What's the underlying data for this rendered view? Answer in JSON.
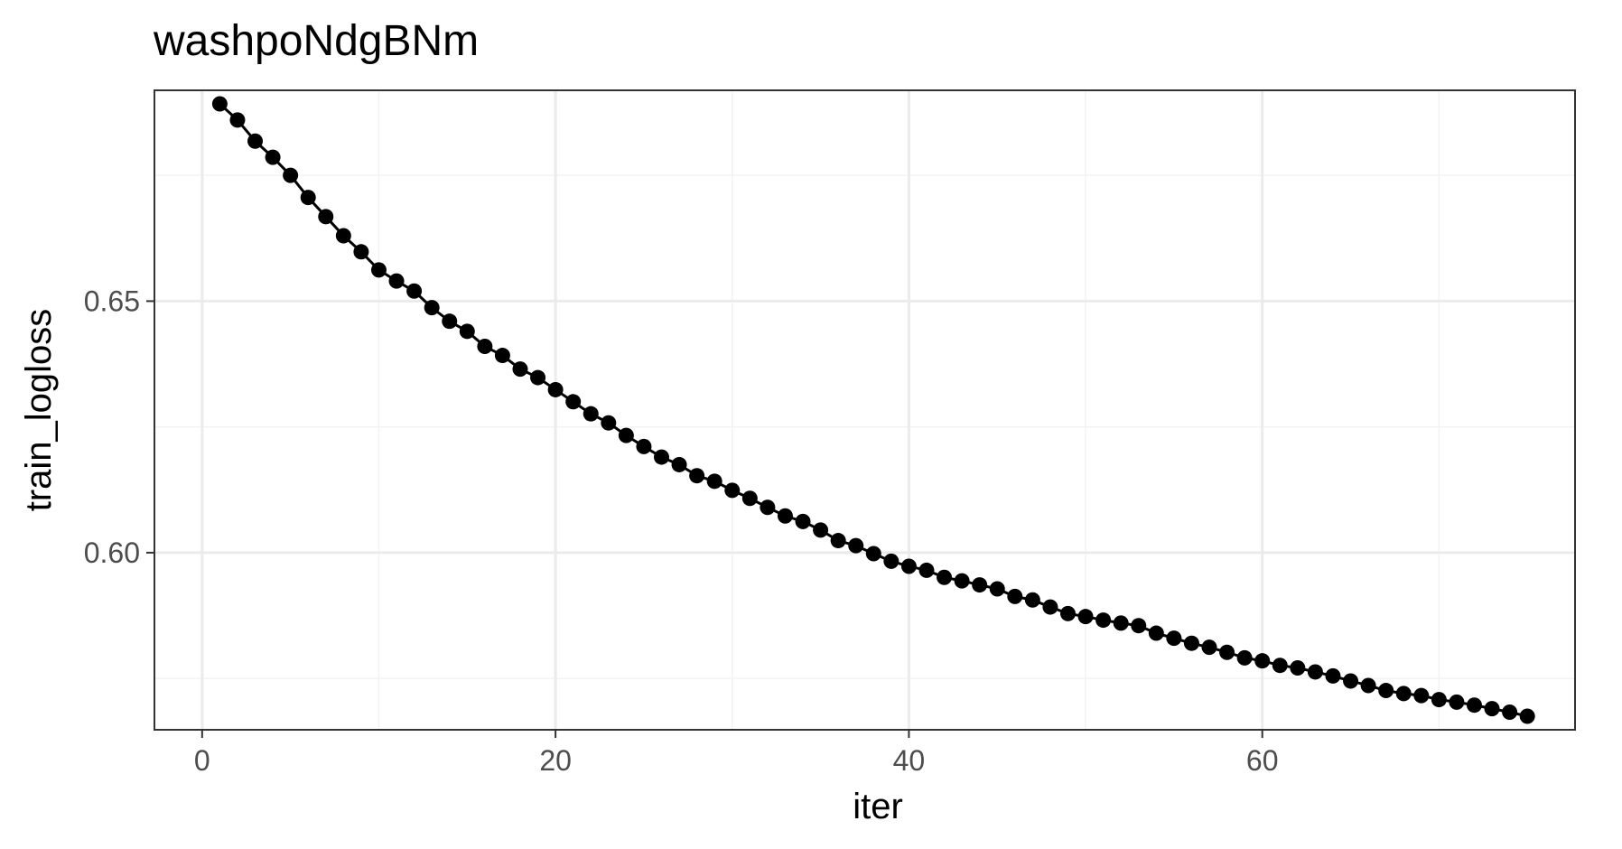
{
  "chart_data": {
    "type": "line",
    "title": "washpoNdgBNm",
    "xlabel": "iter",
    "ylabel": "train_logloss",
    "xlim": [
      -2.7,
      77.7
    ],
    "ylim": [
      0.5648,
      0.6919
    ],
    "x_ticks": [
      0,
      20,
      40,
      60
    ],
    "x_tick_labels": [
      "0",
      "20",
      "40",
      "60"
    ],
    "x_minor_ticks": [
      10,
      30,
      50,
      70
    ],
    "y_ticks": [
      0.6,
      0.65
    ],
    "y_tick_labels": [
      "0.60",
      "0.65"
    ],
    "y_minor_ticks": [
      0.575,
      0.625,
      0.675
    ],
    "grid": true,
    "legend": "none",
    "colors": {
      "series": "#000000",
      "grid_major": "#ebebeb",
      "grid_minor": "#f3f3f3",
      "panel_border": "#333333",
      "tick_label": "#4d4d4d"
    },
    "series": [
      {
        "x": [
          1,
          2,
          3,
          4,
          5,
          6,
          7,
          8,
          9,
          10,
          11,
          12,
          13,
          14,
          15,
          16,
          17,
          18,
          19,
          20,
          21,
          22,
          23,
          24,
          25,
          26,
          27,
          28,
          29,
          30,
          31,
          32,
          33,
          34,
          35,
          36,
          37,
          38,
          39,
          40,
          41,
          42,
          43,
          44,
          45,
          46,
          47,
          48,
          49,
          50,
          51,
          52,
          53,
          54,
          55,
          56,
          57,
          58,
          59,
          60,
          61,
          62,
          63,
          64,
          65,
          66,
          67,
          68,
          69,
          70,
          71,
          72,
          73,
          74,
          75
        ],
        "y": [
          0.6892,
          0.686,
          0.6818,
          0.6786,
          0.675,
          0.6706,
          0.6668,
          0.663,
          0.6598,
          0.6562,
          0.654,
          0.652,
          0.6487,
          0.646,
          0.644,
          0.641,
          0.6392,
          0.6365,
          0.6348,
          0.6324,
          0.63,
          0.6276,
          0.6258,
          0.6233,
          0.6211,
          0.619,
          0.6175,
          0.6153,
          0.6142,
          0.6124,
          0.6108,
          0.609,
          0.6073,
          0.6062,
          0.6045,
          0.6024,
          0.6014,
          0.5998,
          0.5983,
          0.5973,
          0.5965,
          0.5951,
          0.5944,
          0.5936,
          0.5928,
          0.5913,
          0.5906,
          0.5892,
          0.5879,
          0.5873,
          0.5866,
          0.586,
          0.5855,
          0.584,
          0.583,
          0.582,
          0.5812,
          0.5802,
          0.5791,
          0.5785,
          0.5776,
          0.5771,
          0.5763,
          0.5755,
          0.5745,
          0.5736,
          0.5726,
          0.572,
          0.5716,
          0.5708,
          0.5703,
          0.5697,
          0.569,
          0.5683,
          0.5675
        ]
      }
    ]
  }
}
